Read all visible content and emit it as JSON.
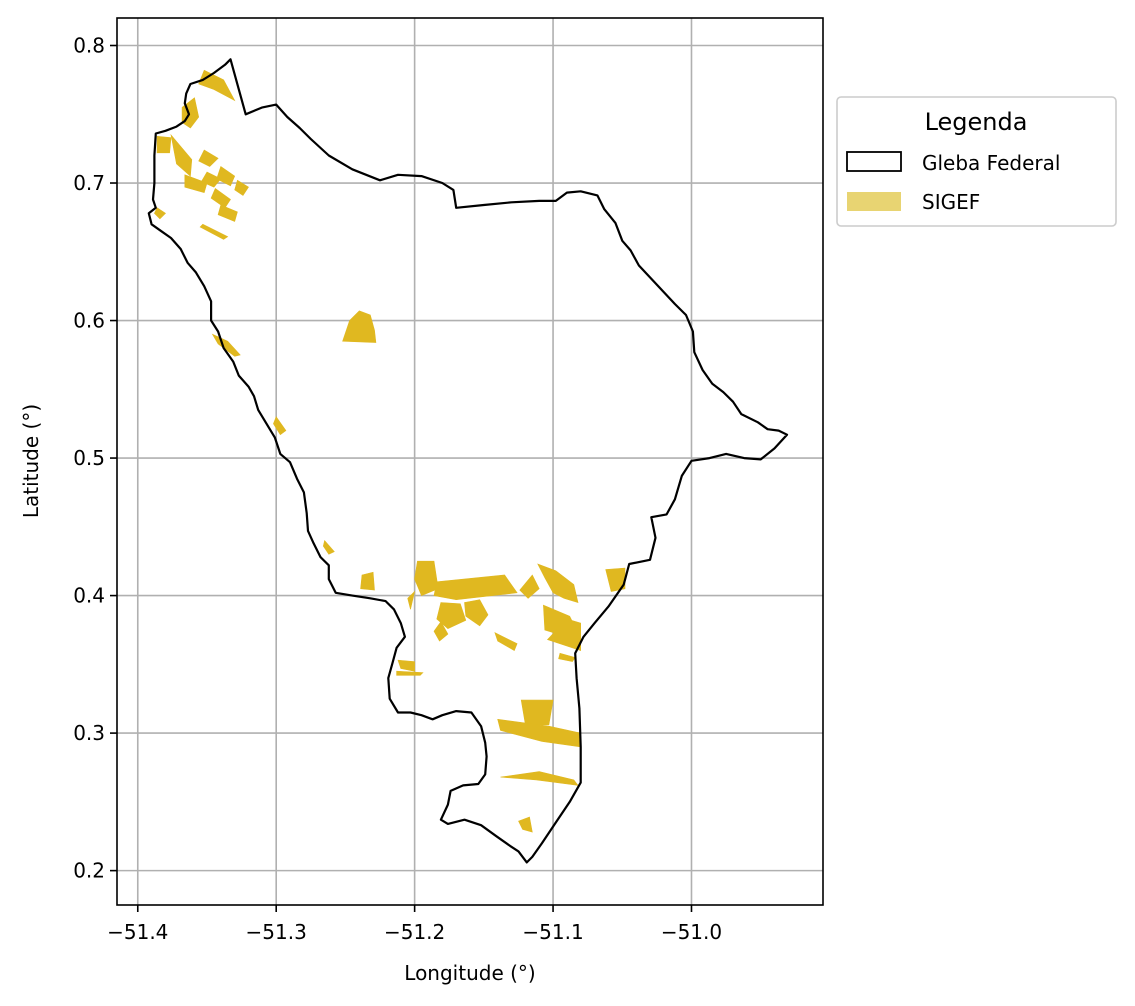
{
  "chart_data": {
    "type": "map",
    "xlabel": "Longitude (°)",
    "ylabel": "Latitude (°)",
    "xlim": [
      -51.415,
      -50.905
    ],
    "ylim": [
      0.175,
      0.82
    ],
    "xticks": [
      {
        "value": -51.4,
        "label": "−51.4"
      },
      {
        "value": -51.3,
        "label": "−51.3"
      },
      {
        "value": -51.2,
        "label": "−51.2"
      },
      {
        "value": -51.1,
        "label": "−51.1"
      },
      {
        "value": -51.0,
        "label": "−51.0"
      }
    ],
    "yticks": [
      {
        "value": 0.2,
        "label": "0.2"
      },
      {
        "value": 0.3,
        "label": "0.3"
      },
      {
        "value": 0.4,
        "label": "0.4"
      },
      {
        "value": 0.5,
        "label": "0.5"
      },
      {
        "value": 0.6,
        "label": "0.6"
      },
      {
        "value": 0.7,
        "label": "0.7"
      },
      {
        "value": 0.8,
        "label": "0.8"
      }
    ],
    "grid": true,
    "legend": {
      "title": "Legenda",
      "placement": "outside-upper-right",
      "items": [
        {
          "label": "Gleba Federal",
          "kind": "outline",
          "edge": "#000000",
          "fill": "#ffffff"
        },
        {
          "label": "SIGEF",
          "kind": "fill",
          "fill": "#e8d472"
        }
      ]
    },
    "colors": {
      "sigef": "#e0b820",
      "boundary": "#000000",
      "grid": "#b0b0b0"
    },
    "gleba_federal": [
      [
        -51.333,
        0.79
      ],
      [
        -51.337,
        0.786
      ],
      [
        -51.345,
        0.78
      ],
      [
        -51.353,
        0.775
      ],
      [
        -51.362,
        0.772
      ],
      [
        -51.365,
        0.765
      ],
      [
        -51.366,
        0.758
      ],
      [
        -51.363,
        0.75
      ],
      [
        -51.366,
        0.745
      ],
      [
        -51.372,
        0.741
      ],
      [
        -51.38,
        0.738
      ],
      [
        -51.387,
        0.736
      ],
      [
        -51.388,
        0.72
      ],
      [
        -51.388,
        0.7
      ],
      [
        -51.389,
        0.688
      ],
      [
        -51.387,
        0.682
      ],
      [
        -51.392,
        0.678
      ],
      [
        -51.39,
        0.67
      ],
      [
        -51.383,
        0.665
      ],
      [
        -51.376,
        0.66
      ],
      [
        -51.369,
        0.652
      ],
      [
        -51.364,
        0.642
      ],
      [
        -51.358,
        0.635
      ],
      [
        -51.352,
        0.625
      ],
      [
        -51.347,
        0.614
      ],
      [
        -51.347,
        0.6
      ],
      [
        -51.342,
        0.592
      ],
      [
        -51.338,
        0.58
      ],
      [
        -51.331,
        0.57
      ],
      [
        -51.327,
        0.56
      ],
      [
        -51.32,
        0.552
      ],
      [
        -51.316,
        0.545
      ],
      [
        -51.313,
        0.535
      ],
      [
        -51.307,
        0.525
      ],
      [
        -51.301,
        0.515
      ],
      [
        -51.297,
        0.503
      ],
      [
        -51.29,
        0.497
      ],
      [
        -51.285,
        0.485
      ],
      [
        -51.28,
        0.475
      ],
      [
        -51.278,
        0.46
      ],
      [
        -51.277,
        0.447
      ],
      [
        -51.273,
        0.438
      ],
      [
        -51.268,
        0.428
      ],
      [
        -51.262,
        0.422
      ],
      [
        -51.262,
        0.412
      ],
      [
        -51.257,
        0.402
      ],
      [
        -51.245,
        0.4
      ],
      [
        -51.232,
        0.398
      ],
      [
        -51.221,
        0.396
      ],
      [
        -51.215,
        0.39
      ],
      [
        -51.21,
        0.38
      ],
      [
        -51.207,
        0.37
      ],
      [
        -51.213,
        0.362
      ],
      [
        -51.216,
        0.351
      ],
      [
        -51.219,
        0.34
      ],
      [
        -51.218,
        0.325
      ],
      [
        -51.212,
        0.315
      ],
      [
        -51.203,
        0.315
      ],
      [
        -51.195,
        0.313
      ],
      [
        -51.187,
        0.31
      ],
      [
        -51.18,
        0.313
      ],
      [
        -51.17,
        0.316
      ],
      [
        -51.159,
        0.315
      ],
      [
        -51.152,
        0.305
      ],
      [
        -51.149,
        0.293
      ],
      [
        -51.148,
        0.283
      ],
      [
        -51.149,
        0.27
      ],
      [
        -51.154,
        0.263
      ],
      [
        -51.165,
        0.262
      ],
      [
        -51.174,
        0.258
      ],
      [
        -51.176,
        0.248
      ],
      [
        -51.181,
        0.237
      ],
      [
        -51.176,
        0.234
      ],
      [
        -51.164,
        0.237
      ],
      [
        -51.152,
        0.233
      ],
      [
        -51.141,
        0.225
      ],
      [
        -51.131,
        0.218
      ],
      [
        -51.125,
        0.214
      ],
      [
        -51.119,
        0.206
      ],
      [
        -51.115,
        0.21
      ],
      [
        -51.108,
        0.22
      ],
      [
        -51.098,
        0.235
      ],
      [
        -51.088,
        0.25
      ],
      [
        -51.08,
        0.264
      ],
      [
        -51.08,
        0.29
      ],
      [
        -51.081,
        0.318
      ],
      [
        -51.083,
        0.34
      ],
      [
        -51.084,
        0.358
      ],
      [
        -51.078,
        0.37
      ],
      [
        -51.07,
        0.38
      ],
      [
        -51.06,
        0.392
      ],
      [
        -51.049,
        0.408
      ],
      [
        -51.045,
        0.423
      ],
      [
        -51.03,
        0.426
      ],
      [
        -51.026,
        0.442
      ],
      [
        -51.029,
        0.457
      ],
      [
        -51.018,
        0.459
      ],
      [
        -51.012,
        0.47
      ],
      [
        -51.007,
        0.487
      ],
      [
        -51.0,
        0.498
      ],
      [
        -50.987,
        0.5
      ],
      [
        -50.975,
        0.503
      ],
      [
        -50.962,
        0.5
      ],
      [
        -50.95,
        0.499
      ],
      [
        -50.94,
        0.507
      ],
      [
        -50.931,
        0.517
      ],
      [
        -50.937,
        0.52
      ],
      [
        -50.945,
        0.521
      ],
      [
        -50.952,
        0.526
      ],
      [
        -50.964,
        0.532
      ],
      [
        -50.97,
        0.541
      ],
      [
        -50.977,
        0.548
      ],
      [
        -50.985,
        0.554
      ],
      [
        -50.992,
        0.564
      ],
      [
        -50.998,
        0.577
      ],
      [
        -50.999,
        0.592
      ],
      [
        -51.004,
        0.604
      ],
      [
        -51.012,
        0.612
      ],
      [
        -51.024,
        0.625
      ],
      [
        -51.038,
        0.64
      ],
      [
        -51.044,
        0.651
      ],
      [
        -51.05,
        0.658
      ],
      [
        -51.055,
        0.671
      ],
      [
        -51.063,
        0.681
      ],
      [
        -51.068,
        0.691
      ],
      [
        -51.08,
        0.694
      ],
      [
        -51.09,
        0.693
      ],
      [
        -51.098,
        0.687
      ],
      [
        -51.11,
        0.687
      ],
      [
        -51.13,
        0.686
      ],
      [
        -51.15,
        0.684
      ],
      [
        -51.17,
        0.682
      ],
      [
        -51.172,
        0.695
      ],
      [
        -51.18,
        0.7
      ],
      [
        -51.195,
        0.705
      ],
      [
        -51.212,
        0.706
      ],
      [
        -51.225,
        0.702
      ],
      [
        -51.245,
        0.71
      ],
      [
        -51.262,
        0.72
      ],
      [
        -51.275,
        0.732
      ],
      [
        -51.283,
        0.74
      ],
      [
        -51.292,
        0.748
      ],
      [
        -51.3,
        0.757
      ],
      [
        -51.31,
        0.755
      ],
      [
        -51.322,
        0.75
      ]
    ],
    "sigef_parcels": [
      [
        [
          -51.352,
          0.782
        ],
        [
          -51.338,
          0.775
        ],
        [
          -51.33,
          0.76
        ],
        [
          -51.345,
          0.768
        ],
        [
          -51.356,
          0.772
        ]
      ],
      [
        [
          -51.368,
          0.755
        ],
        [
          -51.359,
          0.762
        ],
        [
          -51.356,
          0.748
        ],
        [
          -51.362,
          0.74
        ],
        [
          -51.368,
          0.744
        ]
      ],
      [
        [
          -51.386,
          0.734
        ],
        [
          -51.376,
          0.733
        ],
        [
          -51.377,
          0.722
        ],
        [
          -51.386,
          0.722
        ]
      ],
      [
        [
          -51.376,
          0.735
        ],
        [
          -51.361,
          0.717
        ],
        [
          -51.362,
          0.705
        ],
        [
          -51.372,
          0.714
        ]
      ],
      [
        [
          -51.352,
          0.724
        ],
        [
          -51.342,
          0.718
        ],
        [
          -51.348,
          0.712
        ],
        [
          -51.356,
          0.716
        ]
      ],
      [
        [
          -51.35,
          0.708
        ],
        [
          -51.34,
          0.703
        ],
        [
          -51.345,
          0.697
        ],
        [
          -51.354,
          0.701
        ]
      ],
      [
        [
          -51.34,
          0.712
        ],
        [
          -51.33,
          0.705
        ],
        [
          -51.333,
          0.698
        ],
        [
          -51.343,
          0.703
        ]
      ],
      [
        [
          -51.366,
          0.706
        ],
        [
          -51.35,
          0.7
        ],
        [
          -51.352,
          0.693
        ],
        [
          -51.366,
          0.697
        ]
      ],
      [
        [
          -51.344,
          0.696
        ],
        [
          -51.333,
          0.688
        ],
        [
          -51.337,
          0.682
        ],
        [
          -51.347,
          0.689
        ]
      ],
      [
        [
          -51.34,
          0.684
        ],
        [
          -51.328,
          0.679
        ],
        [
          -51.33,
          0.672
        ],
        [
          -51.342,
          0.677
        ]
      ],
      [
        [
          -51.328,
          0.702
        ],
        [
          -51.32,
          0.697
        ],
        [
          -51.324,
          0.691
        ],
        [
          -51.33,
          0.695
        ]
      ],
      [
        [
          -51.386,
          0.682
        ],
        [
          -51.38,
          0.678
        ],
        [
          -51.384,
          0.674
        ],
        [
          -51.388,
          0.678
        ]
      ],
      [
        [
          -51.355,
          0.668
        ],
        [
          -51.338,
          0.659
        ],
        [
          -51.335,
          0.661
        ],
        [
          -51.353,
          0.67
        ]
      ],
      [
        [
          -51.252,
          0.585
        ],
        [
          -51.247,
          0.6
        ],
        [
          -51.24,
          0.607
        ],
        [
          -51.232,
          0.604
        ],
        [
          -51.229,
          0.593
        ],
        [
          -51.228,
          0.584
        ]
      ],
      [
        [
          -51.198,
          0.425
        ],
        [
          -51.186,
          0.425
        ],
        [
          -51.183,
          0.405
        ],
        [
          -51.195,
          0.4
        ],
        [
          -51.2,
          0.412
        ]
      ],
      [
        [
          -51.184,
          0.41
        ],
        [
          -51.135,
          0.415
        ],
        [
          -51.126,
          0.402
        ],
        [
          -51.17,
          0.397
        ],
        [
          -51.186,
          0.4
        ]
      ],
      [
        [
          -51.238,
          0.415
        ],
        [
          -51.23,
          0.417
        ],
        [
          -51.229,
          0.404
        ],
        [
          -51.239,
          0.405
        ]
      ],
      [
        [
          -51.181,
          0.395
        ],
        [
          -51.167,
          0.394
        ],
        [
          -51.163,
          0.382
        ],
        [
          -51.176,
          0.376
        ],
        [
          -51.184,
          0.383
        ]
      ],
      [
        [
          -51.164,
          0.395
        ],
        [
          -51.153,
          0.397
        ],
        [
          -51.147,
          0.386
        ],
        [
          -51.153,
          0.378
        ],
        [
          -51.163,
          0.385
        ]
      ],
      [
        [
          -51.181,
          0.381
        ],
        [
          -51.176,
          0.372
        ],
        [
          -51.182,
          0.367
        ],
        [
          -51.186,
          0.374
        ]
      ],
      [
        [
          -51.142,
          0.373
        ],
        [
          -51.126,
          0.365
        ],
        [
          -51.128,
          0.36
        ],
        [
          -51.14,
          0.367
        ]
      ],
      [
        [
          -51.111,
          0.423
        ],
        [
          -51.098,
          0.418
        ],
        [
          -51.085,
          0.408
        ],
        [
          -51.082,
          0.395
        ],
        [
          -51.092,
          0.398
        ],
        [
          -51.1,
          0.402
        ],
        [
          -51.106,
          0.413
        ]
      ],
      [
        [
          -51.062,
          0.419
        ],
        [
          -51.048,
          0.42
        ],
        [
          -51.048,
          0.405
        ],
        [
          -51.058,
          0.403
        ]
      ],
      [
        [
          -51.115,
          0.415
        ],
        [
          -51.11,
          0.405
        ],
        [
          -51.118,
          0.398
        ],
        [
          -51.124,
          0.404
        ]
      ],
      [
        [
          -51.107,
          0.393
        ],
        [
          -51.088,
          0.385
        ],
        [
          -51.083,
          0.375
        ],
        [
          -51.09,
          0.37
        ],
        [
          -51.106,
          0.375
        ]
      ],
      [
        [
          -51.104,
          0.368
        ],
        [
          -51.08,
          0.36
        ],
        [
          -51.08,
          0.38
        ],
        [
          -51.09,
          0.383
        ]
      ],
      [
        [
          -51.095,
          0.358
        ],
        [
          -51.084,
          0.355
        ],
        [
          -51.086,
          0.352
        ],
        [
          -51.096,
          0.354
        ]
      ],
      [
        [
          -51.123,
          0.324
        ],
        [
          -51.1,
          0.324
        ],
        [
          -51.103,
          0.306
        ],
        [
          -51.12,
          0.306
        ]
      ],
      [
        [
          -51.14,
          0.31
        ],
        [
          -51.103,
          0.305
        ],
        [
          -51.08,
          0.3
        ],
        [
          -51.08,
          0.29
        ],
        [
          -51.108,
          0.294
        ],
        [
          -51.138,
          0.302
        ]
      ],
      [
        [
          -51.138,
          0.268
        ],
        [
          -51.11,
          0.272
        ],
        [
          -51.085,
          0.266
        ],
        [
          -51.082,
          0.262
        ],
        [
          -51.112,
          0.266
        ]
      ],
      [
        [
          -51.125,
          0.236
        ],
        [
          -51.117,
          0.239
        ],
        [
          -51.115,
          0.228
        ],
        [
          -51.122,
          0.23
        ]
      ],
      [
        [
          -51.212,
          0.353
        ],
        [
          -51.2,
          0.352
        ],
        [
          -51.2,
          0.345
        ],
        [
          -51.21,
          0.347
        ]
      ],
      [
        [
          -51.213,
          0.345
        ],
        [
          -51.194,
          0.344
        ],
        [
          -51.196,
          0.342
        ],
        [
          -51.213,
          0.342
        ]
      ],
      [
        [
          -51.205,
          0.398
        ],
        [
          -51.2,
          0.403
        ],
        [
          -51.203,
          0.39
        ]
      ],
      [
        [
          -51.346,
          0.59
        ],
        [
          -51.335,
          0.585
        ],
        [
          -51.326,
          0.575
        ],
        [
          -51.33,
          0.574
        ],
        [
          -51.342,
          0.583
        ]
      ],
      [
        [
          -51.3,
          0.53
        ],
        [
          -51.293,
          0.52
        ],
        [
          -51.297,
          0.517
        ],
        [
          -51.302,
          0.525
        ]
      ],
      [
        [
          -51.265,
          0.44
        ],
        [
          -51.258,
          0.432
        ],
        [
          -51.262,
          0.43
        ],
        [
          -51.266,
          0.436
        ]
      ]
    ]
  }
}
